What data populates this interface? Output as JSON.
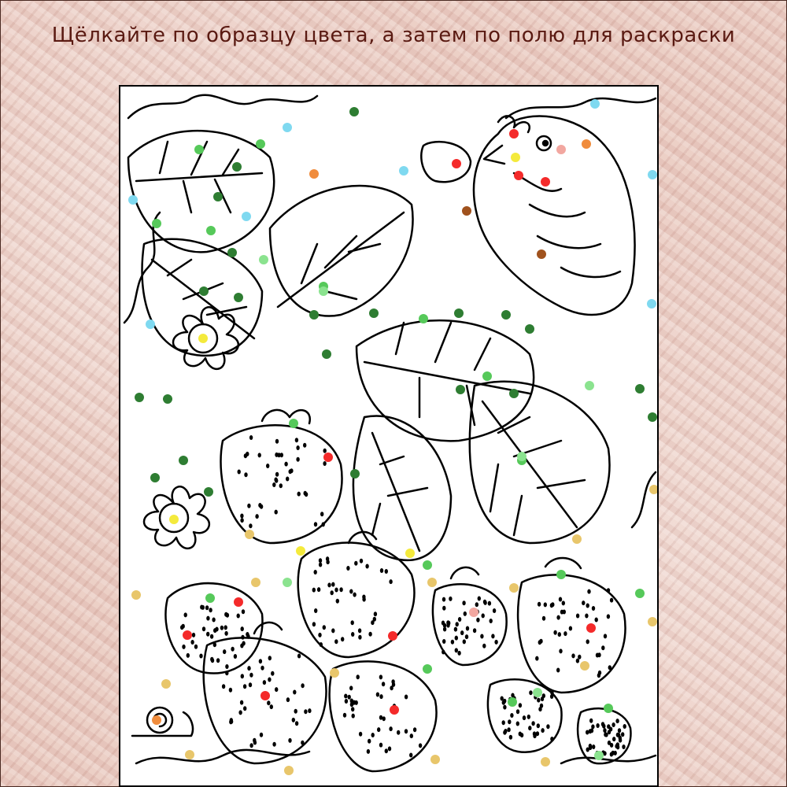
{
  "instruction": "Щёлкайте по образцу цвета, а затем по полю для раскраски",
  "palette": [
    {
      "name": "light-blue",
      "color": "#7fd9f0"
    },
    {
      "name": "green",
      "color": "#56c95a"
    },
    {
      "name": "dark-green",
      "color": "#2e7d32"
    },
    {
      "name": "light-green",
      "color": "#8be38f"
    },
    {
      "name": "red",
      "color": "#f42a2a"
    },
    {
      "name": "pink",
      "color": "#f2a7a0"
    },
    {
      "name": "orange",
      "color": "#f08c3c"
    },
    {
      "name": "brown",
      "color": "#a0521d"
    },
    {
      "name": "yellow",
      "color": "#f4ea3c"
    },
    {
      "name": "tan",
      "color": "#e8c66b"
    }
  ]
}
